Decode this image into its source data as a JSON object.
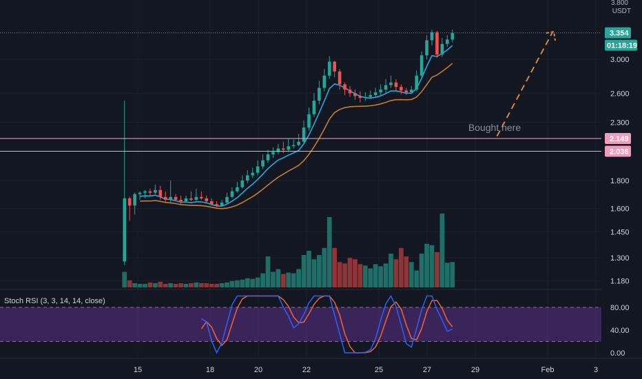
{
  "chart_data": {
    "type": "candlestick",
    "price_axis": {
      "unit_label": "USDT",
      "top_partial_label": "3.800",
      "ticks": [
        {
          "label": "3.000",
          "value": 3.0
        },
        {
          "label": "2.600",
          "value": 2.6
        },
        {
          "label": "2.300",
          "value": 2.3
        },
        {
          "label": "1.800",
          "value": 1.8
        },
        {
          "label": "1.600",
          "value": 1.6
        },
        {
          "label": "1.450",
          "value": 1.45
        },
        {
          "label": "1.300",
          "value": 1.3
        },
        {
          "label": "1.180",
          "value": 1.18
        }
      ],
      "scale": "log"
    },
    "time_axis": {
      "ticks": [
        {
          "label": "15",
          "day": 15
        },
        {
          "label": "18",
          "day": 18
        },
        {
          "label": "20",
          "day": 20
        },
        {
          "label": "22",
          "day": 22
        },
        {
          "label": "25",
          "day": 25
        },
        {
          "label": "27",
          "day": 27
        },
        {
          "label": "29",
          "day": 29
        },
        {
          "label": "Feb",
          "day": 32
        },
        {
          "label": "3",
          "day": 34
        }
      ]
    },
    "current_price": {
      "label": "3.354",
      "value": 3.354,
      "countdown": "01:18:19"
    },
    "levels": [
      {
        "label": "2.149",
        "value": 2.149
      },
      {
        "label": "2.036",
        "value": 2.036
      }
    ],
    "annotation": {
      "text": "Bought here",
      "day": 29.8,
      "value": 2.2
    },
    "arrow": {
      "from": {
        "day": 29.9,
        "value": 2.17
      },
      "to": {
        "day": 32.2,
        "value": 3.36
      }
    },
    "colors": {
      "up": "#26a69a",
      "down": "#ef5350",
      "vol_up": "#1f6f68",
      "vol_down": "#8f3437",
      "ma_fast": "#29a8e0",
      "ma_slow": "#c57d33",
      "stoch_k": "#2962ff",
      "stoch_d": "#f0643c",
      "level_line": "#f0a8c8",
      "level_badge": "#ee9dbd",
      "arrow": "#d08a4a",
      "band_fill": "#4a2a6d",
      "price_badge": "#26a69a"
    },
    "candle_seed": {
      "first_day": 14.45,
      "last_day": 28.05,
      "start_price": 1.28,
      "end_price": 3.35,
      "note_free": true
    },
    "candles": [
      [
        1.28,
        1.67,
        2.52,
        1.26
      ],
      [
        1.67,
        1.62,
        1.68,
        1.52
      ],
      [
        1.62,
        1.7,
        1.71,
        1.56
      ],
      [
        1.7,
        1.71,
        1.72,
        1.66
      ],
      [
        1.71,
        1.72,
        1.73,
        1.67
      ],
      [
        1.72,
        1.71,
        1.74,
        1.69
      ],
      [
        1.71,
        1.73,
        1.77,
        1.7
      ],
      [
        1.73,
        1.68,
        1.76,
        1.66
      ],
      [
        1.68,
        1.66,
        1.72,
        1.64
      ],
      [
        1.66,
        1.68,
        1.8,
        1.64
      ],
      [
        1.68,
        1.66,
        1.7,
        1.65
      ],
      [
        1.66,
        1.65,
        1.69,
        1.63
      ],
      [
        1.65,
        1.67,
        1.69,
        1.64
      ],
      [
        1.67,
        1.66,
        1.72,
        1.65
      ],
      [
        1.66,
        1.68,
        1.74,
        1.65
      ],
      [
        1.68,
        1.67,
        1.72,
        1.66
      ],
      [
        1.67,
        1.65,
        1.69,
        1.64
      ],
      [
        1.65,
        1.63,
        1.67,
        1.62
      ],
      [
        1.63,
        1.62,
        1.65,
        1.61
      ],
      [
        1.62,
        1.64,
        1.66,
        1.61
      ],
      [
        1.64,
        1.68,
        1.71,
        1.63
      ],
      [
        1.68,
        1.72,
        1.75,
        1.67
      ],
      [
        1.72,
        1.75,
        1.79,
        1.71
      ],
      [
        1.75,
        1.8,
        1.84,
        1.74
      ],
      [
        1.8,
        1.84,
        1.88,
        1.78
      ],
      [
        1.84,
        1.86,
        1.9,
        1.82
      ],
      [
        1.86,
        1.91,
        1.96,
        1.84
      ],
      [
        1.91,
        1.96,
        2.01,
        1.89
      ],
      [
        1.96,
        2.01,
        2.05,
        1.94
      ],
      [
        2.01,
        2.03,
        2.07,
        1.98
      ],
      [
        2.03,
        2.06,
        2.1,
        2.01
      ],
      [
        2.06,
        2.05,
        2.12,
        2.02
      ],
      [
        2.05,
        2.08,
        2.15,
        2.03
      ],
      [
        2.08,
        2.09,
        2.14,
        2.06
      ],
      [
        2.09,
        2.12,
        2.19,
        2.08
      ],
      [
        2.12,
        2.25,
        2.32,
        2.1
      ],
      [
        2.25,
        2.38,
        2.45,
        2.22
      ],
      [
        2.38,
        2.52,
        2.6,
        2.35
      ],
      [
        2.52,
        2.66,
        2.74,
        2.48
      ],
      [
        2.66,
        2.8,
        2.88,
        2.62
      ],
      [
        2.8,
        2.97,
        3.04,
        2.76
      ],
      [
        2.97,
        2.85,
        2.98,
        2.78
      ],
      [
        2.85,
        2.7,
        2.88,
        2.64
      ],
      [
        2.7,
        2.64,
        2.72,
        2.58
      ],
      [
        2.64,
        2.6,
        2.68,
        2.56
      ],
      [
        2.6,
        2.57,
        2.64,
        2.53
      ],
      [
        2.57,
        2.55,
        2.62,
        2.5
      ],
      [
        2.55,
        2.56,
        2.61,
        2.52
      ],
      [
        2.56,
        2.58,
        2.63,
        2.54
      ],
      [
        2.58,
        2.61,
        2.66,
        2.56
      ],
      [
        2.61,
        2.64,
        2.7,
        2.58
      ],
      [
        2.64,
        2.69,
        2.76,
        2.6
      ],
      [
        2.69,
        2.72,
        2.8,
        2.66
      ],
      [
        2.72,
        2.67,
        2.76,
        2.63
      ],
      [
        2.67,
        2.63,
        2.7,
        2.59
      ],
      [
        2.63,
        2.61,
        2.66,
        2.58
      ],
      [
        2.61,
        2.64,
        2.68,
        2.59
      ],
      [
        2.64,
        2.8,
        2.86,
        2.62
      ],
      [
        2.8,
        3.05,
        3.1,
        2.76
      ],
      [
        3.05,
        3.25,
        3.32,
        3.0
      ],
      [
        3.25,
        3.36,
        3.4,
        3.18
      ],
      [
        3.36,
        3.06,
        3.38,
        3.02
      ],
      [
        3.06,
        3.2,
        3.28,
        3.03
      ],
      [
        3.2,
        3.26,
        3.32,
        3.16
      ],
      [
        3.26,
        3.35,
        3.4,
        3.22
      ]
    ],
    "volume_relative": [
      0.22,
      0.1,
      0.06,
      0.05,
      0.05,
      0.07,
      0.06,
      0.08,
      0.05,
      0.06,
      0.05,
      0.06,
      0.05,
      0.06,
      0.07,
      0.06,
      0.06,
      0.05,
      0.05,
      0.06,
      0.07,
      0.09,
      0.1,
      0.11,
      0.13,
      0.12,
      0.14,
      0.2,
      0.44,
      0.22,
      0.26,
      0.19,
      0.21,
      0.2,
      0.26,
      0.46,
      0.52,
      0.4,
      0.46,
      0.56,
      1.0,
      0.56,
      0.36,
      0.34,
      0.42,
      0.4,
      0.33,
      0.31,
      0.27,
      0.33,
      0.3,
      0.34,
      0.48,
      0.4,
      0.56,
      0.44,
      0.36,
      0.24,
      0.48,
      0.62,
      0.6,
      0.5,
      1.05,
      0.35,
      0.36
    ],
    "stoch_rsi": {
      "title": "Stoch RSI (3, 3, 14, 14, close)",
      "axis_ticks": [
        {
          "label": "80.00",
          "value": 80
        },
        {
          "label": "40.00",
          "value": 40
        },
        {
          "label": "0.00",
          "value": 0
        }
      ],
      "upper_band": 80,
      "lower_band": 20,
      "range": [
        0,
        100
      ]
    }
  }
}
